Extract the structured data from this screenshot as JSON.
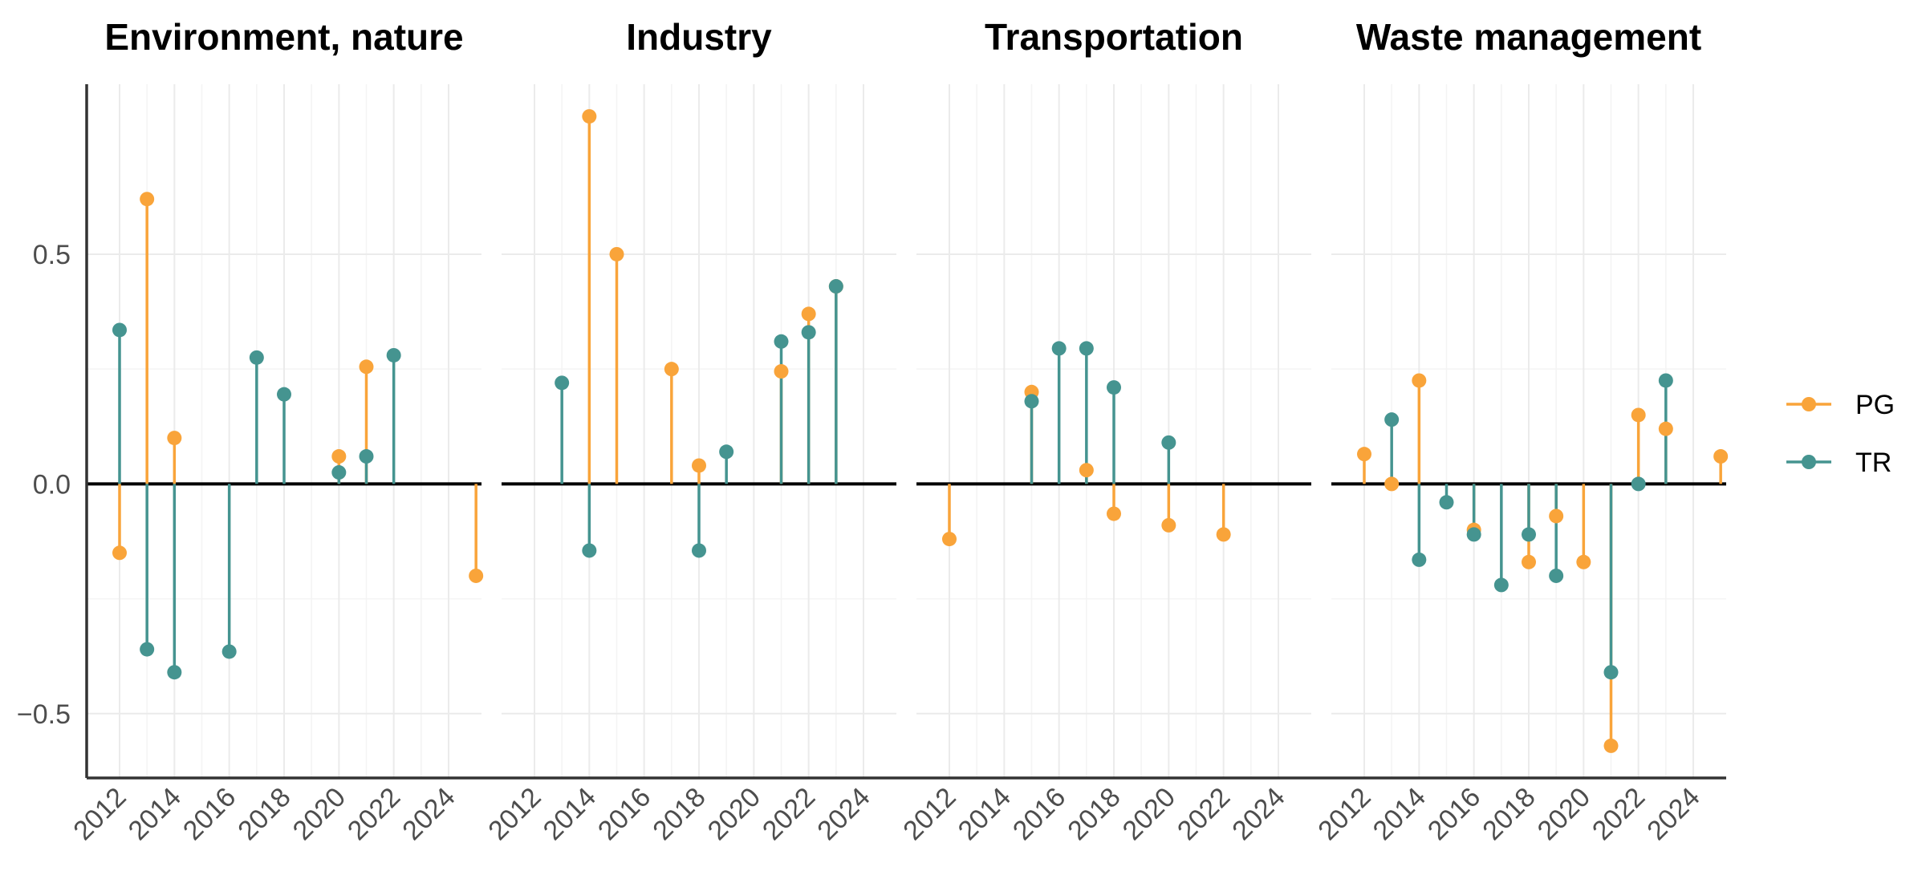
{
  "chart_data": {
    "type": "lollipop",
    "facets": [
      "Environment, nature",
      "Industry",
      "Transportation",
      "Waste management"
    ],
    "x_ticks": [
      2012,
      2014,
      2016,
      2018,
      2020,
      2022,
      2024
    ],
    "xlim": [
      2010.8,
      2025.2
    ],
    "y_ticks": [
      {
        "value": 0.5,
        "label": "0.5"
      },
      {
        "value": 0.0,
        "label": "0.0"
      },
      {
        "value": -0.5,
        "label": "−0.5"
      }
    ],
    "ylim": [
      -0.64,
      0.87
    ],
    "grid": true,
    "legend_position": "right",
    "legend": [
      {
        "name": "PG",
        "color": "#F9A43A"
      },
      {
        "name": "TR",
        "color": "#459490"
      }
    ],
    "series": [
      {
        "name": "PG",
        "color": "#F9A43A",
        "facets": [
          [
            [
              2012,
              -0.15
            ],
            [
              2013,
              0.62
            ],
            [
              2014,
              0.1
            ],
            [
              2020,
              0.06
            ],
            [
              2021,
              0.255
            ],
            [
              2025,
              -0.2
            ]
          ],
          [
            [
              2014,
              0.8
            ],
            [
              2015,
              0.5
            ],
            [
              2017,
              0.25
            ],
            [
              2018,
              0.04
            ],
            [
              2021,
              0.245
            ],
            [
              2022,
              0.37
            ],
            [
              2023,
              0.43
            ]
          ],
          [
            [
              2012,
              -0.12
            ],
            [
              2015,
              0.2
            ],
            [
              2017,
              0.03
            ],
            [
              2018,
              -0.065
            ],
            [
              2020,
              -0.09
            ],
            [
              2022,
              -0.11
            ]
          ],
          [
            [
              2012,
              0.065
            ],
            [
              2013,
              0.0
            ],
            [
              2014,
              0.225
            ],
            [
              2016,
              -0.1
            ],
            [
              2018,
              -0.17
            ],
            [
              2019,
              -0.07
            ],
            [
              2020,
              -0.17
            ],
            [
              2021,
              -0.57
            ],
            [
              2022,
              0.15
            ],
            [
              2023,
              0.12
            ],
            [
              2025,
              0.06
            ]
          ]
        ]
      },
      {
        "name": "TR",
        "color": "#459490",
        "facets": [
          [
            [
              2012,
              0.335
            ],
            [
              2013,
              -0.36
            ],
            [
              2014,
              -0.41
            ],
            [
              2016,
              -0.365
            ],
            [
              2017,
              0.275
            ],
            [
              2018,
              0.195
            ],
            [
              2020,
              0.025
            ],
            [
              2021,
              0.06
            ],
            [
              2022,
              0.28
            ]
          ],
          [
            [
              2013,
              0.22
            ],
            [
              2014,
              -0.145
            ],
            [
              2018,
              -0.145
            ],
            [
              2019,
              0.07
            ],
            [
              2021,
              0.31
            ],
            [
              2022,
              0.33
            ],
            [
              2023,
              0.43
            ]
          ],
          [
            [
              2015,
              0.18
            ],
            [
              2016,
              0.295
            ],
            [
              2017,
              0.295
            ],
            [
              2018,
              0.21
            ],
            [
              2020,
              0.09
            ]
          ],
          [
            [
              2013,
              0.14
            ],
            [
              2014,
              -0.165
            ],
            [
              2015,
              -0.04
            ],
            [
              2016,
              -0.11
            ],
            [
              2017,
              -0.22
            ],
            [
              2018,
              -0.11
            ],
            [
              2019,
              -0.2
            ],
            [
              2021,
              -0.41
            ],
            [
              2022,
              0.0
            ],
            [
              2023,
              0.225
            ]
          ]
        ]
      }
    ]
  }
}
